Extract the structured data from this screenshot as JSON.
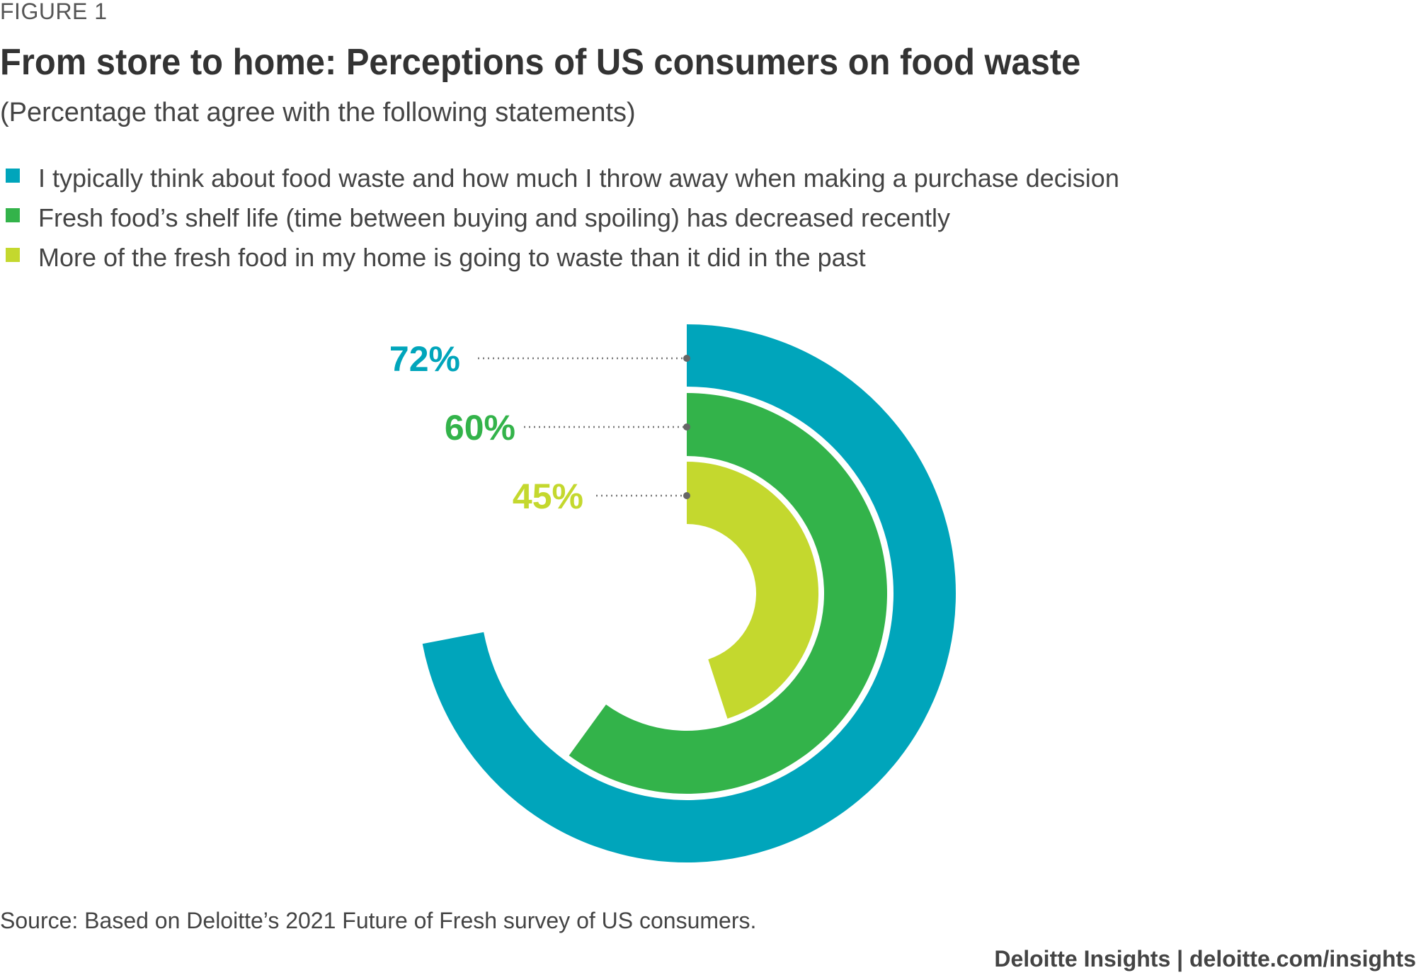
{
  "figure_label": "FIGURE 1",
  "chart_data": {
    "type": "radial-bar",
    "title": "From store to home: Perceptions of US consumers on food waste",
    "subtitle": "(Percentage that agree with the following statements)",
    "unit": "%",
    "series": [
      {
        "name": "I typically think about food waste and how much I throw away when making a purchase decision",
        "value": 72,
        "label": "72%",
        "color": "#00A5BB"
      },
      {
        "name": "Fresh food’s shelf life (time between buying and spoiling) has decreased recently",
        "value": 60,
        "label": "60%",
        "color": "#33B34A"
      },
      {
        "name": "More of the fresh food in my home is going to waste than it did in the past",
        "value": 45,
        "label": "45%",
        "color": "#C4D82E"
      }
    ],
    "max": 100,
    "legend_position": "top-left"
  },
  "source": "Source: Based on Deloitte’s 2021 Future of Fresh survey of US consumers.",
  "brand": "Deloitte Insights | deloitte.com/insights"
}
